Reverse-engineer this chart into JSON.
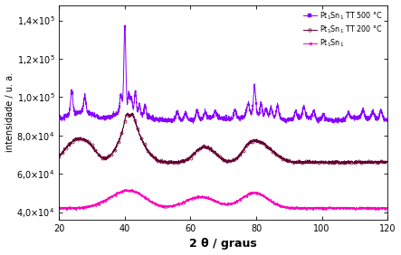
{
  "xlim": [
    20,
    120
  ],
  "ylim": [
    36000.0,
    148000.0
  ],
  "yticks": [
    40000.0,
    60000.0,
    80000.0,
    100000.0,
    120000.0,
    140000.0
  ],
  "xlabel": "2 θ / graus",
  "ylabel": "intensidade / u. a.",
  "color_500": "#8800FF",
  "color_200": "#660033",
  "color_as": "#FF00BB",
  "base_500": 88000,
  "base_200": 66000,
  "base_as": 42000,
  "marker_step": 30
}
